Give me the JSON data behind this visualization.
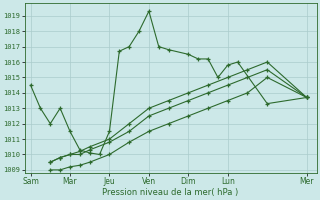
{
  "xlabel": "Pression niveau de la mer( hPa )",
  "ylim": [
    1008.8,
    1019.8
  ],
  "yticks": [
    1009,
    1010,
    1011,
    1012,
    1013,
    1014,
    1015,
    1016,
    1017,
    1018,
    1019
  ],
  "xtick_labels": [
    "Sam",
    "Mar",
    "Jeu",
    "Ven",
    "Dim",
    "Lun",
    "Mer"
  ],
  "xtick_positions": [
    0,
    2,
    4,
    6,
    8,
    10,
    14
  ],
  "xlim": [
    -0.3,
    14.5
  ],
  "background_color": "#cce8e8",
  "grid_color": "#aacccc",
  "line_color": "#2d6a2d",
  "series1_x": [
    0,
    0.5,
    1,
    1.5,
    2,
    2.5,
    3,
    3.5,
    4,
    4.5,
    5,
    5.5,
    6,
    6.5,
    7,
    8,
    8.5,
    9,
    9.5,
    10,
    10.5,
    12,
    14
  ],
  "series1_y": [
    1014.5,
    1013.0,
    1012.0,
    1013.0,
    1011.5,
    1010.3,
    1010.1,
    1010.0,
    1011.5,
    1016.7,
    1017.0,
    1018.0,
    1019.3,
    1017.0,
    1016.8,
    1016.5,
    1016.2,
    1016.2,
    1015.0,
    1015.8,
    1016.0,
    1013.3,
    1013.7
  ],
  "series2_x": [
    1,
    1.5,
    2,
    2.5,
    3,
    4,
    5,
    6,
    7,
    8,
    9,
    10,
    11,
    12,
    14
  ],
  "series2_y": [
    1009.5,
    1009.8,
    1010.0,
    1010.2,
    1010.5,
    1011.0,
    1012.0,
    1013.0,
    1013.5,
    1014.0,
    1014.5,
    1015.0,
    1015.5,
    1016.0,
    1013.7
  ],
  "series3_x": [
    1,
    1.5,
    2,
    2.5,
    3,
    4,
    5,
    6,
    7,
    8,
    9,
    10,
    11,
    12,
    14
  ],
  "series3_y": [
    1009.5,
    1009.8,
    1010.0,
    1010.0,
    1010.3,
    1010.8,
    1011.5,
    1012.5,
    1013.0,
    1013.5,
    1014.0,
    1014.5,
    1015.0,
    1015.5,
    1013.7
  ],
  "series4_x": [
    1,
    1.5,
    2,
    2.5,
    3,
    4,
    5,
    6,
    7,
    8,
    9,
    10,
    11,
    12,
    14
  ],
  "series4_y": [
    1009.0,
    1009.0,
    1009.2,
    1009.3,
    1009.5,
    1010.0,
    1010.8,
    1011.5,
    1012.0,
    1012.5,
    1013.0,
    1013.5,
    1014.0,
    1015.0,
    1013.7
  ]
}
